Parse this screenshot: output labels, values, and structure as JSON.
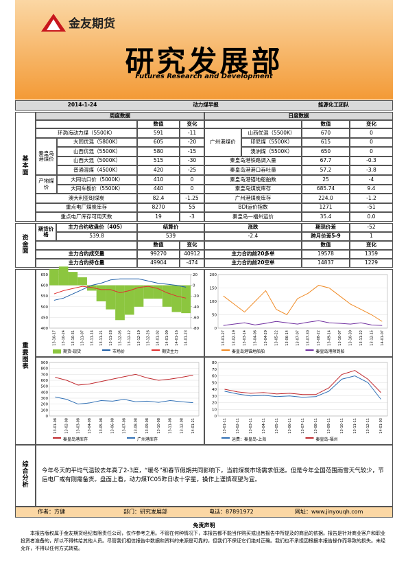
{
  "header": {
    "logo": "金友期货",
    "title": "研究发展部",
    "subtitle": "Futures Research and Development"
  },
  "info": {
    "date": "2014-1-24",
    "report": "动力煤早报",
    "team": "能源化工团队"
  },
  "sections": [
    "基本面",
    "资金面",
    "重要图表",
    "综合分析"
  ],
  "weekly": {
    "title": "周度数据",
    "columns": [
      "数值",
      "变化"
    ],
    "rows": [
      {
        "name": "环渤海动力煤（5500K）",
        "value": "591",
        "change": "-11"
      },
      {
        "group": "秦皇岛港煤价",
        "items": [
          {
            "name": "大同优混（5800K）",
            "value": "605",
            "change": "-20"
          },
          {
            "name": "山西优混（5500K）",
            "value": "580",
            "change": "-15"
          },
          {
            "name": "山西大混（5000K）",
            "value": "515",
            "change": "-30"
          },
          {
            "name": "普通混煤（4500K）",
            "value": "420",
            "change": "-25"
          }
        ]
      },
      {
        "group": "产地煤价",
        "items": [
          {
            "name": "大同坑口价（5000K）",
            "value": "410",
            "change": "0"
          },
          {
            "name": "大同车板价（5500K）",
            "value": "440",
            "change": "0"
          }
        ]
      },
      {
        "name": "澳大利亚BJ煤炭",
        "value": "82.4",
        "change": "-1.25"
      },
      {
        "name": "重点电厂煤炭库存",
        "value": "8270",
        "change": "55"
      },
      {
        "name": "重点电厂库存可用天数",
        "value": "19",
        "change": "-3"
      }
    ]
  },
  "daily": {
    "title": "日度数据",
    "columns": [
      "数值",
      "变化"
    ],
    "rows": [
      {
        "group": "广州港煤价",
        "items": [
          {
            "name": "山西优混（5500K）",
            "value": "670",
            "change": "0"
          },
          {
            "name": "印尼煤（5500K）",
            "value": "615",
            "change": "0"
          },
          {
            "name": "澳洲煤（5500K）",
            "value": "650",
            "change": "0"
          }
        ]
      },
      {
        "name": "秦皇岛港铁路调入量",
        "value": "67.7",
        "change": "-0.3"
      },
      {
        "name": "秦皇岛港港口吞吐量",
        "value": "57.2",
        "change": "-3.8"
      },
      {
        "name": "秦皇岛港锚地船舶数",
        "value": "25",
        "change": "-4"
      },
      {
        "name": "秦皇岛煤炭库存",
        "value": "685.74",
        "change": "9.4"
      },
      {
        "name": "广州港煤炭库存",
        "value": "224.0",
        "change": "-1.2"
      },
      {
        "name": "BDI运价指数",
        "value": "1271",
        "change": "-51"
      },
      {
        "name": "秦皇岛—福州运价",
        "value": "35.4",
        "change": "0.0"
      }
    ]
  },
  "funds": {
    "label": "期货价格",
    "close_label": "主力合约收盘价（405）",
    "close": "539.8",
    "settle_label": "结算价",
    "settle": "539",
    "change_label": "涨跌",
    "change": "-2.4",
    "basis_label": "期现价差",
    "basis": "-52",
    "spread_label": "跨月价差5-9",
    "spread": "1",
    "columns": [
      "数值",
      "变化"
    ],
    "left": [
      {
        "name": "主力合约成交量",
        "value": "99270",
        "change": "40912"
      },
      {
        "name": "主力合约持仓量",
        "value": "49904",
        "change": "-474"
      }
    ],
    "right": [
      {
        "name": "主力合约前20多单",
        "value": "19578",
        "change": "1359"
      },
      {
        "name": "主力合约前20空单",
        "value": "14837",
        "change": "1229"
      }
    ]
  },
  "charts": [
    {
      "type": "line",
      "ylim": [
        400,
        650
      ],
      "yticks": [
        400,
        450,
        500,
        550,
        600,
        650
      ],
      "y2lim": [
        -80,
        20
      ],
      "y2ticks": [
        -80,
        -60,
        -40,
        -20,
        0,
        20
      ],
      "categories": [
        "13-10-17",
        "13-10-24",
        "13-10-31",
        "13-11-07",
        "13-11-14",
        "13-11-21",
        "13-11-28",
        "13-12-05",
        "13-12-12",
        "13-12-19",
        "13-12-26",
        "14-01-02",
        "14-01-09",
        "14-01-16",
        "14-01-23"
      ],
      "series": [
        {
          "name": "期货-现货",
          "color": "#8cc63f",
          "axis": "y2",
          "style": "area",
          "values": [
            30,
            35,
            25,
            15,
            -10,
            -30,
            -45,
            -65,
            -55,
            -40,
            -25,
            -25,
            -40,
            -50,
            -52
          ]
        },
        {
          "name": "市场价",
          "color": "#1f5fa8",
          "values": [
            530,
            540,
            560,
            580,
            600,
            610,
            625,
            630,
            630,
            630,
            620,
            610,
            605,
            600,
            591
          ]
        },
        {
          "name": "期货主力",
          "color": "#e03030",
          "values": [
            560,
            575,
            585,
            595,
            590,
            580,
            580,
            565,
            575,
            590,
            595,
            585,
            565,
            550,
            540
          ]
        }
      ]
    },
    {
      "type": "line",
      "ylim": [
        0,
        200
      ],
      "yticks": [
        0,
        50,
        100,
        150,
        200
      ],
      "categories": [
        "13-01-27",
        "13-02-19",
        "13-03-14",
        "13-04-06",
        "13-04-29",
        "13-05-22",
        "13-06-14",
        "13-07-07",
        "13-07-30",
        "13-08-22",
        "13-09-14",
        "13-10-07",
        "13-10-30",
        "13-11-22",
        "13-12-15",
        "14-01-07"
      ],
      "series": [
        {
          "name": "秦皇岛港锚地船舶",
          "color": "#f08a24",
          "values": [
            120,
            90,
            60,
            100,
            140,
            70,
            50,
            110,
            130,
            160,
            150,
            120,
            90,
            70,
            50,
            25
          ]
        },
        {
          "name": "秦皇岛港预到船",
          "color": "#7030a0",
          "values": [
            10,
            15,
            20,
            12,
            18,
            25,
            20,
            15,
            22,
            28,
            20,
            18,
            15,
            20,
            12,
            10
          ]
        }
      ]
    },
    {
      "type": "line",
      "ylim": [
        0,
        900
      ],
      "yticks": [
        0,
        100,
        200,
        300,
        400,
        500,
        600,
        700,
        800,
        900
      ],
      "categories": [
        "13-01-08",
        "13-02-08",
        "13-03-08",
        "13-04-08",
        "13-05-08",
        "13-06-08",
        "13-07-08",
        "13-08-08",
        "13-09-08",
        "13-10-08",
        "13-11-08",
        "13-12-08",
        "14-01-21"
      ],
      "series": [
        {
          "name": "秦皇岛港库存",
          "color": "#c0282d",
          "values": [
            650,
            600,
            520,
            540,
            580,
            620,
            660,
            700,
            640,
            600,
            620,
            650,
            686
          ]
        },
        {
          "name": "广州港库存",
          "color": "#2f6fb5",
          "values": [
            320,
            280,
            200,
            220,
            260,
            250,
            280,
            240,
            250,
            230,
            260,
            240,
            224
          ]
        }
      ]
    },
    {
      "type": "line",
      "ylim": [
        0,
        80
      ],
      "yticks": [
        0,
        10,
        20,
        30,
        40,
        50,
        60,
        70,
        80
      ],
      "categories": [
        "13-01-11",
        "13-02-11",
        "13-03-11",
        "13-04-11",
        "13-05-11",
        "13-06-11",
        "13-07-11",
        "13-08-11",
        "13-09-11",
        "13-10-11",
        "13-11-11",
        "13-12-11",
        "14-01-03"
      ],
      "series": [
        {
          "name": "运费：秦皇岛-上海",
          "color": "#2f6fb5",
          "values": [
            37,
            33,
            30,
            31,
            29,
            30,
            28,
            29,
            37,
            55,
            60,
            50,
            25
          ]
        },
        {
          "name": "秦皇岛-福州",
          "color": "#c0282d",
          "values": [
            40,
            36,
            34,
            35,
            33,
            34,
            32,
            32,
            42,
            62,
            68,
            55,
            35
          ]
        }
      ]
    }
  ],
  "summary": "今年冬天的平均气温较去年高了2-3度，“暖冬”和春节假期共同影响下，当前煤炭市场需求低迷。但是今年全国范围雨雪天气较少，节后电厂或有刚需备货。盘面上看，动力煤TC05昨日收十字星，操作上谨慎观望为宜。",
  "footer": [
    "作者：方健",
    "部门：研究发展部",
    "电话：87891972",
    "网址：www.jinyouqh.com"
  ],
  "disclaimer": {
    "title": "免责声明",
    "text": "本报告版权属于金友期货经纪有限责任公司，仅作参考之用。不管在何种情况下，本报告都不能当作购买或出售报告中所提及的商品的依据。报告是针对商业客户和职业投资者准备的，所以不得转给其他人员。尽管我们相信报告中数据和资料的来源是可靠的，但我们不保证它们绝对正确。我们也不承担因根据本报告操作而导致的损失。未经允许，不得以任何方式转载。"
  }
}
